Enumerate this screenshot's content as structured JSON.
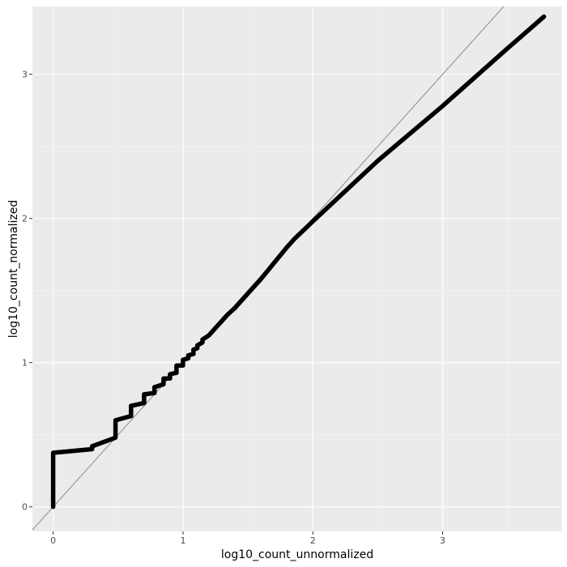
{
  "chart_data": {
    "type": "line",
    "title": "",
    "xlabel": "log10_count_unnormalized",
    "ylabel": "log10_count_normalized",
    "xlim": [
      -0.16,
      3.92
    ],
    "ylim": [
      -0.17,
      3.47
    ],
    "x_ticks": [
      0,
      1,
      2,
      3
    ],
    "y_ticks": [
      0,
      1,
      2,
      3
    ],
    "x_tick_labels": [
      "0",
      "1",
      "2",
      "3"
    ],
    "y_tick_labels": [
      "0",
      "1",
      "2",
      "3"
    ],
    "grid": true,
    "background": "#ebebeb",
    "grid_major_color": "#ffffff",
    "grid_minor_color": "#f5f5f5",
    "reference_line": {
      "slope": 1,
      "intercept": 0,
      "color": "#999999"
    },
    "series": [
      {
        "color": "#000000",
        "points": [
          [
            0.0,
            0.0
          ],
          [
            0.0,
            0.375
          ],
          [
            0.3,
            0.4
          ],
          [
            0.3,
            0.42
          ],
          [
            0.48,
            0.48
          ],
          [
            0.48,
            0.6
          ],
          [
            0.6,
            0.63
          ],
          [
            0.6,
            0.7
          ],
          [
            0.7,
            0.72
          ],
          [
            0.7,
            0.78
          ],
          [
            0.78,
            0.79
          ],
          [
            0.78,
            0.83
          ],
          [
            0.85,
            0.85
          ],
          [
            0.85,
            0.89
          ],
          [
            0.9,
            0.89
          ],
          [
            0.9,
            0.92
          ],
          [
            0.95,
            0.93
          ],
          [
            0.95,
            0.98
          ],
          [
            1.0,
            0.98
          ],
          [
            1.0,
            1.02
          ],
          [
            1.04,
            1.03
          ],
          [
            1.04,
            1.05
          ],
          [
            1.08,
            1.06
          ],
          [
            1.08,
            1.09
          ],
          [
            1.11,
            1.1
          ],
          [
            1.11,
            1.12
          ],
          [
            1.15,
            1.14
          ],
          [
            1.15,
            1.16
          ],
          [
            1.2,
            1.19
          ],
          [
            1.23,
            1.22
          ],
          [
            1.26,
            1.25
          ],
          [
            1.3,
            1.29
          ],
          [
            1.34,
            1.33
          ],
          [
            1.4,
            1.38
          ],
          [
            1.45,
            1.43
          ],
          [
            1.52,
            1.5
          ],
          [
            1.6,
            1.58
          ],
          [
            1.7,
            1.69
          ],
          [
            1.8,
            1.8
          ],
          [
            1.86,
            1.86
          ],
          [
            2.0,
            1.98
          ],
          [
            2.5,
            2.4
          ],
          [
            3.0,
            2.78
          ],
          [
            3.5,
            3.18
          ],
          [
            3.78,
            3.4
          ]
        ]
      }
    ]
  }
}
